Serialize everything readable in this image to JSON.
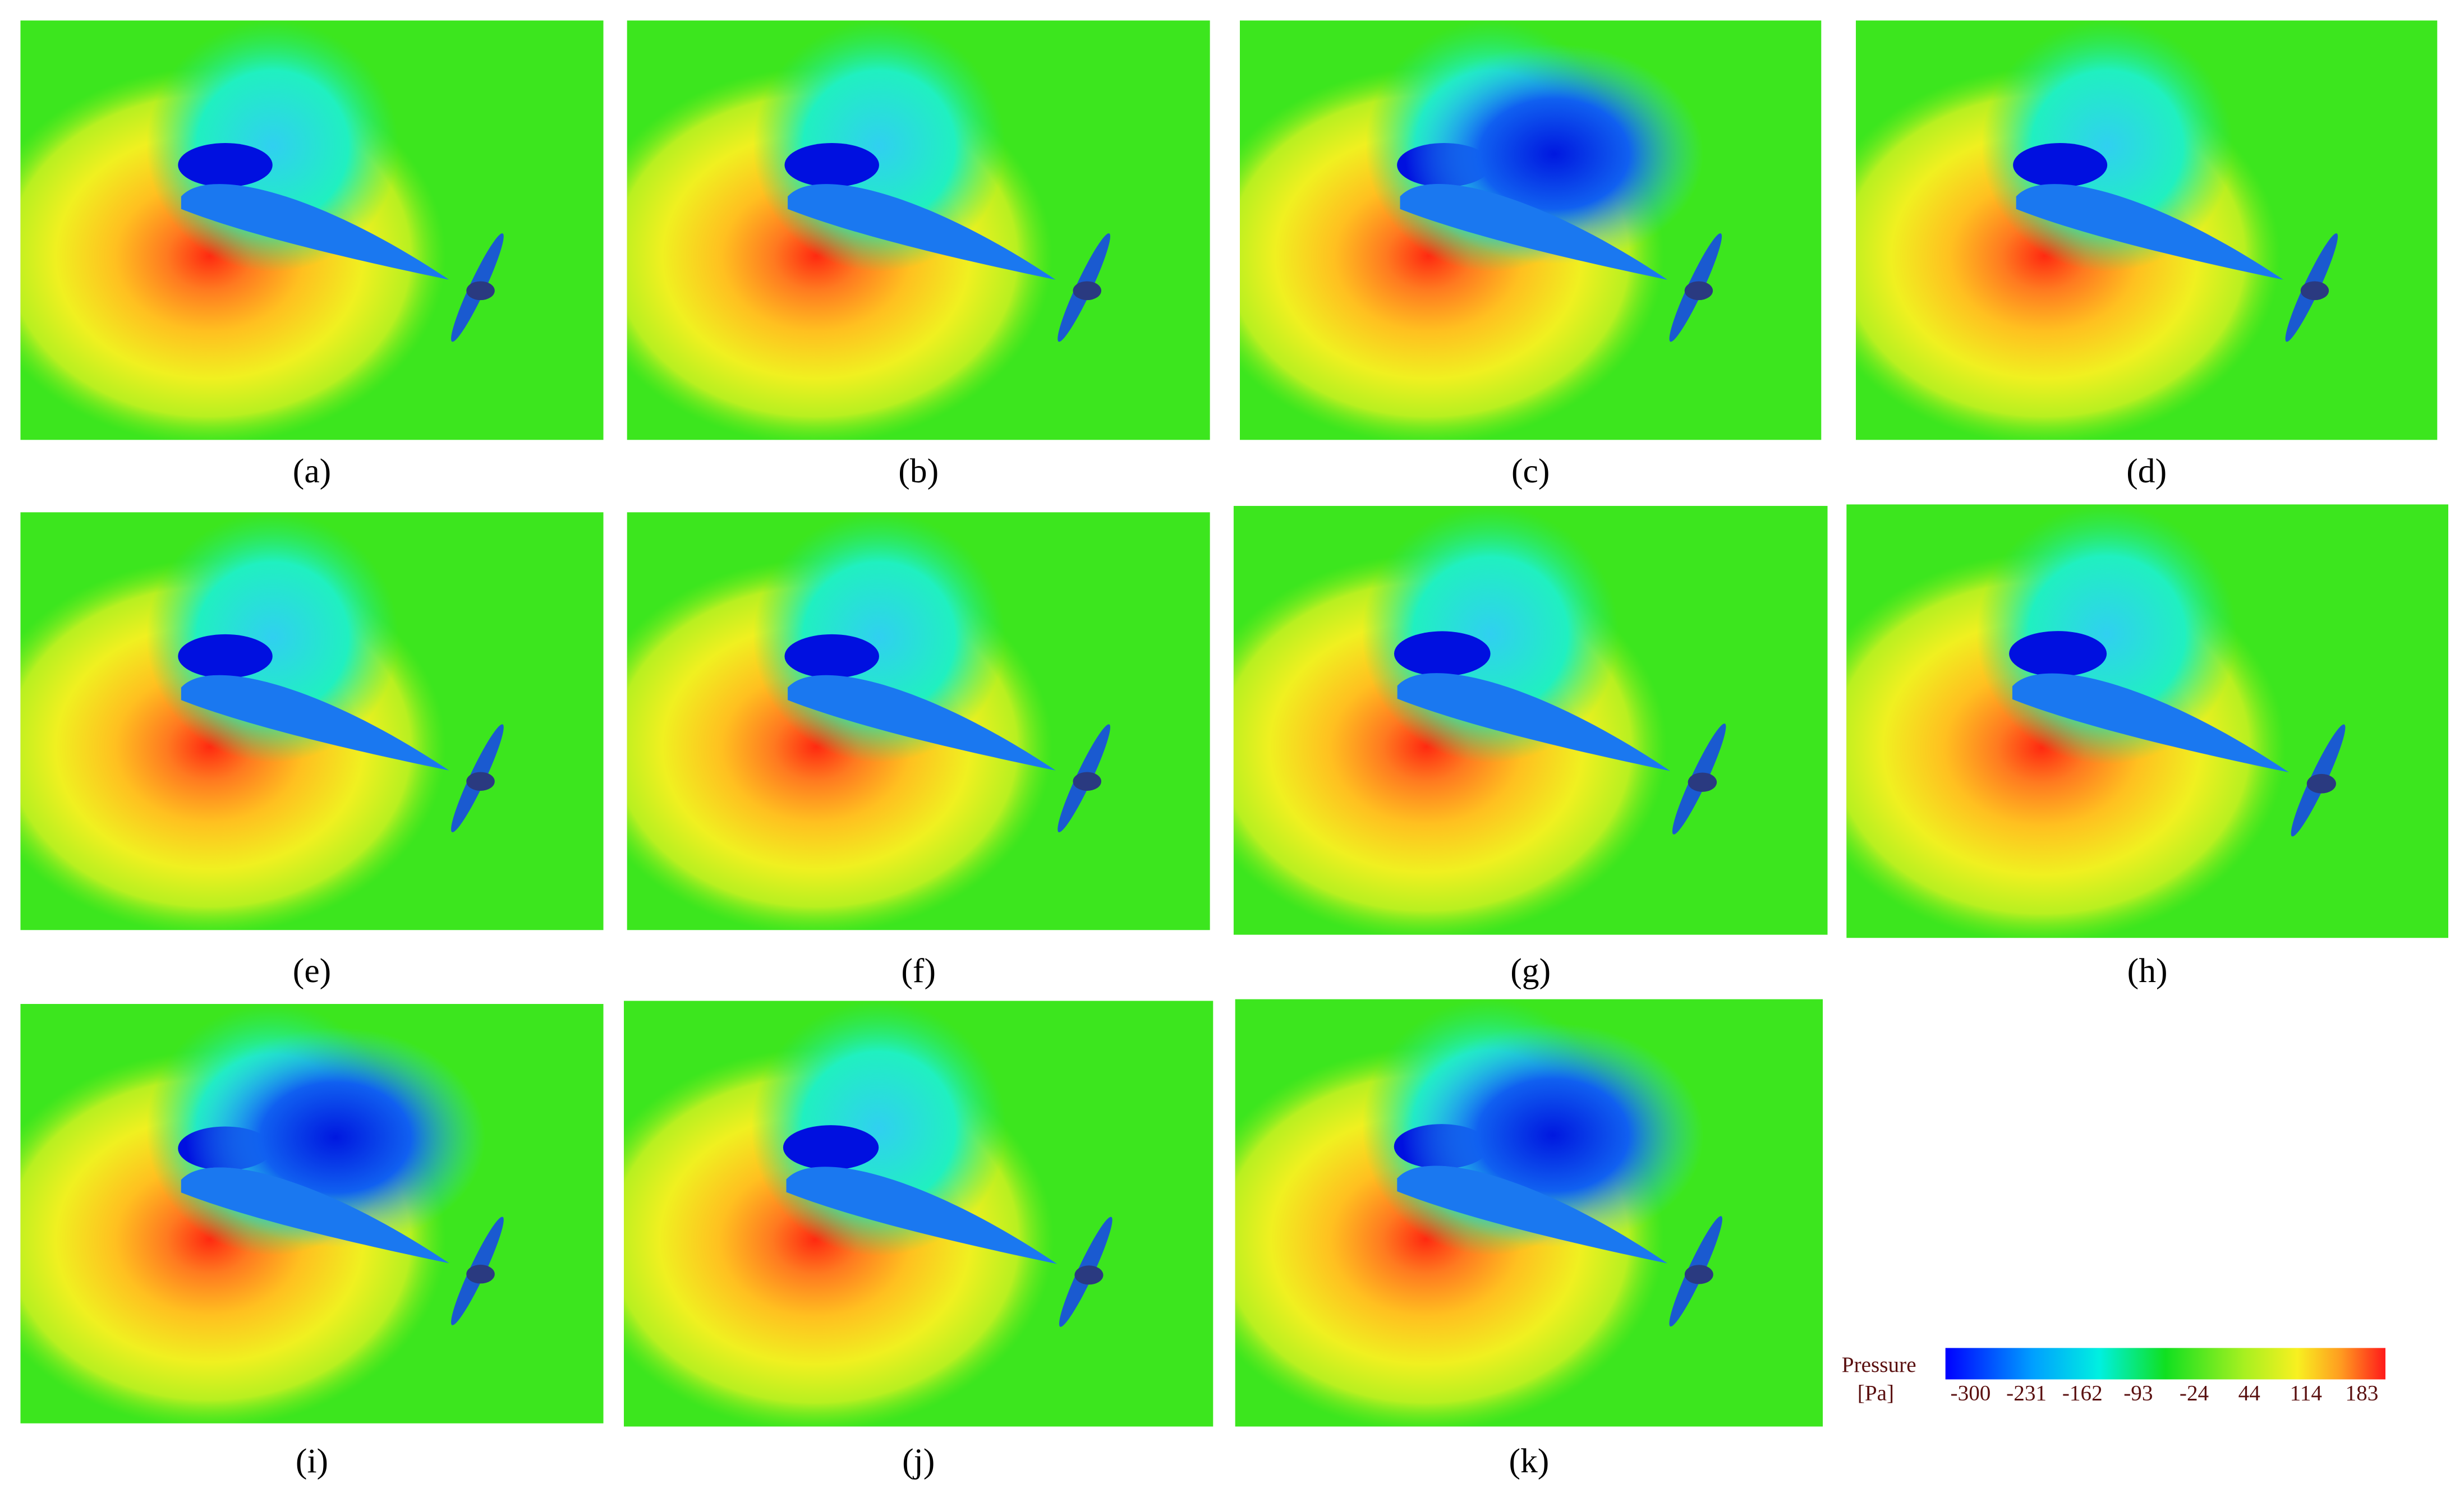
{
  "panels": [
    {
      "label": "(a)"
    },
    {
      "label": "(b)"
    },
    {
      "label": "(c)"
    },
    {
      "label": "(d)"
    },
    {
      "label": "(e)"
    },
    {
      "label": "(f)"
    },
    {
      "label": "(g)"
    },
    {
      "label": "(h)"
    },
    {
      "label": "(i)"
    },
    {
      "label": "(j)"
    },
    {
      "label": "(k)"
    }
  ],
  "colorbar": {
    "title": "Pressure",
    "unit": "[Pa]",
    "ticks": [
      -300,
      -231,
      -162,
      -93,
      -24,
      44,
      114,
      183
    ]
  }
}
